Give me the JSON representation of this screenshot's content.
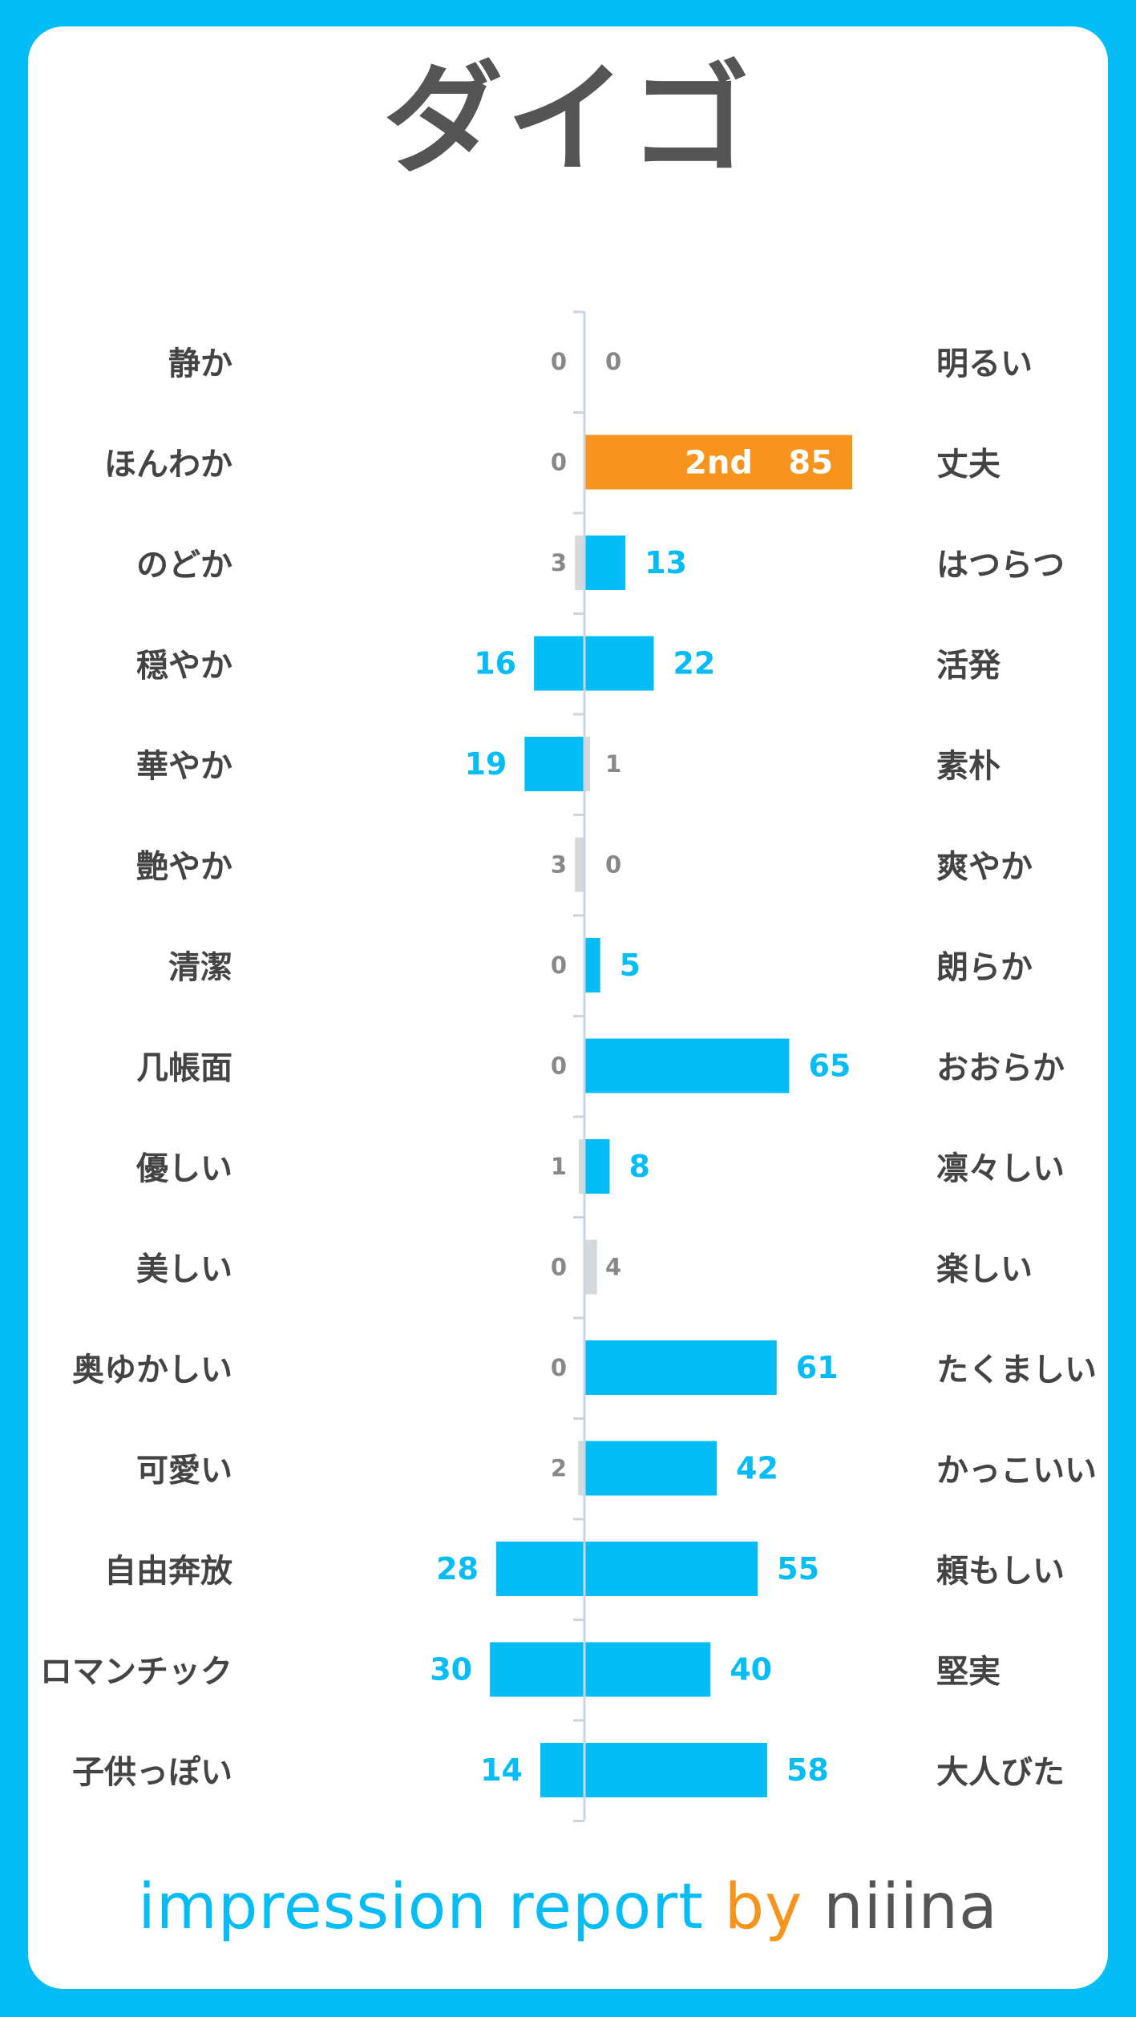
{
  "title": "ダイゴ",
  "footer": {
    "impression": "impression report",
    "by": "by",
    "brand": "niiina"
  },
  "colors": {
    "bar": "#04bdf7",
    "highlight": "#f7941d",
    "small": "#d5d9dc",
    "label": "#444444",
    "small_value": "#888888",
    "axis": "#c9d6df"
  },
  "chart_data": {
    "type": "bar",
    "orientation": "horizontal-diverging",
    "categories_left": [
      "静か",
      "ほんわか",
      "のどか",
      "穏やか",
      "華やか",
      "艶やか",
      "清潔",
      "几帳面",
      "優しい",
      "美しい",
      "奥ゆかしい",
      "可愛い",
      "自由奔放",
      "ロマンチック",
      "子供っぽい"
    ],
    "categories_right": [
      "明るい",
      "丈夫",
      "はつらつ",
      "活発",
      "素朴",
      "爽やか",
      "朗らか",
      "おおらか",
      "凛々しい",
      "楽しい",
      "たくましい",
      "かっこいい",
      "頼もしい",
      "堅実",
      "大人びた"
    ],
    "series": [
      {
        "values": [
          0,
          0,
          3,
          16,
          19,
          3,
          0,
          0,
          1,
          0,
          0,
          2,
          28,
          30,
          14
        ]
      },
      {
        "values": [
          0,
          85,
          13,
          22,
          1,
          0,
          5,
          65,
          8,
          4,
          61,
          42,
          55,
          40,
          58
        ]
      }
    ],
    "highlight": {
      "side": "right",
      "index": 1,
      "rank_label": "2nd"
    }
  }
}
